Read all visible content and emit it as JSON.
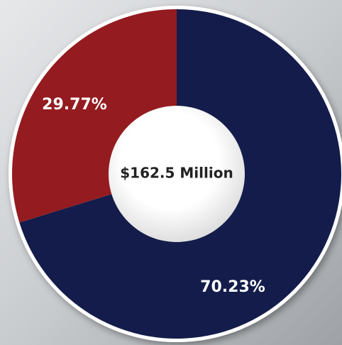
{
  "chart_data": {
    "type": "pie",
    "donut": true,
    "center_label": "$162.5 Million",
    "series": [
      {
        "name": null,
        "values": [
          70.23,
          29.77
        ],
        "value_labels": [
          "70.23%",
          "29.77%"
        ],
        "colors": [
          "#131c4a",
          "#941b1f"
        ]
      }
    ]
  }
}
